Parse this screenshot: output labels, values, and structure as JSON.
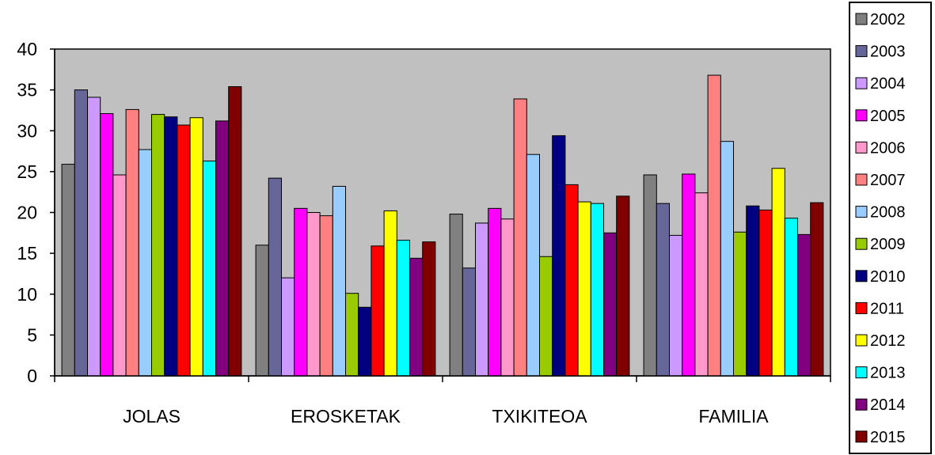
{
  "chart_data": {
    "type": "bar",
    "title": "",
    "xlabel": "",
    "ylabel": "",
    "ylim": [
      0,
      40
    ],
    "yticks": [
      0,
      5,
      10,
      15,
      20,
      25,
      30,
      35,
      40
    ],
    "grid": false,
    "legend_position": "right",
    "plot_background": "#c0c0c0",
    "categories": [
      "JOLAS",
      "EROSKETAK",
      "TXIKITEOA",
      "FAMILIA"
    ],
    "series": [
      {
        "name": "2002",
        "color": "#808080",
        "values": [
          25.9,
          16.0,
          19.8,
          24.6
        ]
      },
      {
        "name": "2003",
        "color": "#666699",
        "values": [
          35.0,
          24.2,
          13.2,
          21.1
        ]
      },
      {
        "name": "2004",
        "color": "#cc99ff",
        "values": [
          34.1,
          12.0,
          18.7,
          17.2
        ]
      },
      {
        "name": "2005",
        "color": "#ff00ff",
        "values": [
          32.1,
          20.5,
          20.5,
          24.7
        ]
      },
      {
        "name": "2006",
        "color": "#ff99cc",
        "values": [
          24.6,
          20.0,
          19.2,
          22.4
        ]
      },
      {
        "name": "2007",
        "color": "#ff8080",
        "values": [
          32.6,
          19.6,
          33.9,
          36.8
        ]
      },
      {
        "name": "2008",
        "color": "#99ccff",
        "values": [
          27.7,
          23.2,
          27.1,
          28.7
        ]
      },
      {
        "name": "2009",
        "color": "#99cc00",
        "values": [
          32.0,
          10.1,
          14.6,
          17.6
        ]
      },
      {
        "name": "2010",
        "color": "#000080",
        "values": [
          31.7,
          8.4,
          29.4,
          20.8
        ]
      },
      {
        "name": "2011",
        "color": "#ff0000",
        "values": [
          30.7,
          15.9,
          23.4,
          20.3
        ]
      },
      {
        "name": "2012",
        "color": "#ffff00",
        "values": [
          31.6,
          20.2,
          21.3,
          25.4
        ]
      },
      {
        "name": "2013",
        "color": "#00ffff",
        "values": [
          26.3,
          16.6,
          21.1,
          19.3
        ]
      },
      {
        "name": "2014",
        "color": "#800080",
        "values": [
          31.2,
          14.4,
          17.5,
          17.3
        ]
      },
      {
        "name": "2015",
        "color": "#800000",
        "values": [
          35.4,
          16.4,
          22.0,
          21.2
        ]
      }
    ]
  }
}
